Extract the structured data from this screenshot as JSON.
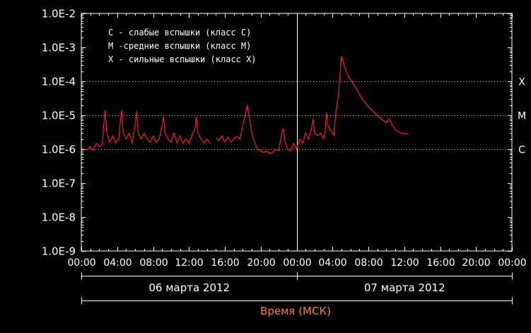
{
  "chart_data": {
    "type": "line",
    "yscale": "log",
    "ylim": [
      1e-09,
      0.01
    ],
    "y_tick_values": [
      1e-09,
      1e-08,
      1e-07,
      1e-06,
      1e-05,
      0.0001,
      0.001,
      0.01
    ],
    "y_tick_labels": [
      "1.0E-9",
      "1.0E-8",
      "1.0E-7",
      "1.0E-6",
      "1.0E-5",
      "1.0E-4",
      "1.0E-3",
      "1.0E-2"
    ],
    "xlim": [
      "2012-03-06 00:00",
      "2012-03-08 00:00"
    ],
    "x_tick_labels": [
      "00:00",
      "04:00",
      "08:00",
      "12:00",
      "16:00",
      "20:00",
      "00:00",
      "04:00",
      "08:00",
      "12:00",
      "16:00",
      "20:00",
      "00:00"
    ],
    "date_labels": [
      "06 марта 2012",
      "07 марта 2012"
    ],
    "xlabel": "Время (МСК)",
    "legend": [
      "С - слабые вспышки (класс С)",
      "М -средние вспышки (класс М)",
      "Х - сильные вспышки (класс Х)"
    ],
    "flare_classes": [
      {
        "label": "X",
        "value": 0.0001
      },
      {
        "label": "M",
        "value": 1e-05
      },
      {
        "label": "C",
        "value": 1e-06
      }
    ],
    "series": [
      {
        "color": "#ff1a1a",
        "segments": [
          [
            [
              "2012-03-06 00:00",
              1.1e-06
            ],
            [
              "2012-03-06 00:20",
              1e-06
            ],
            [
              "2012-03-06 00:40",
              9.5e-07
            ],
            [
              "2012-03-06 01:00",
              1.2e-06
            ],
            [
              "2012-03-06 01:20",
              9e-07
            ],
            [
              "2012-03-06 01:40",
              1.5e-06
            ],
            [
              "2012-03-06 02:00",
              1.2e-06
            ],
            [
              "2012-03-06 02:20",
              1.4e-06
            ],
            [
              "2012-03-06 02:30",
              5e-06
            ],
            [
              "2012-03-06 02:40",
              1.4e-05
            ],
            [
              "2012-03-06 02:50",
              3e-06
            ],
            [
              "2012-03-06 03:10",
              1.6e-06
            ],
            [
              "2012-03-06 03:30",
              2.5e-06
            ],
            [
              "2012-03-06 03:50",
              1.5e-06
            ],
            [
              "2012-03-06 04:10",
              2e-06
            ],
            [
              "2012-03-06 04:20",
              6e-06
            ],
            [
              "2012-03-06 04:30",
              1.4e-05
            ],
            [
              "2012-03-06 04:40",
              3e-06
            ],
            [
              "2012-03-06 05:00",
              2e-06
            ],
            [
              "2012-03-06 05:20",
              3e-06
            ],
            [
              "2012-03-06 05:40",
              1.5e-06
            ],
            [
              "2012-03-06 06:00",
              5e-06
            ],
            [
              "2012-03-06 06:10",
              1.3e-05
            ],
            [
              "2012-03-06 06:20",
              3e-06
            ],
            [
              "2012-03-06 06:40",
              2e-06
            ],
            [
              "2012-03-06 07:00",
              3e-06
            ],
            [
              "2012-03-06 07:20",
              2e-06
            ],
            [
              "2012-03-06 07:40",
              1.6e-06
            ],
            [
              "2012-03-06 08:00",
              2.5e-06
            ],
            [
              "2012-03-06 08:20",
              1.6e-06
            ],
            [
              "2012-03-06 08:40",
              2e-06
            ],
            [
              "2012-03-06 09:00",
              5e-06
            ],
            [
              "2012-03-06 09:10",
              9e-06
            ],
            [
              "2012-03-06 09:20",
              3e-06
            ],
            [
              "2012-03-06 09:40",
              2e-06
            ],
            [
              "2012-03-06 10:00",
              1.6e-06
            ],
            [
              "2012-03-06 10:20",
              3e-06
            ],
            [
              "2012-03-06 10:40",
              1.5e-06
            ],
            [
              "2012-03-06 11:00",
              2.5e-06
            ],
            [
              "2012-03-06 11:20",
              1.5e-06
            ],
            [
              "2012-03-06 11:40",
              2e-06
            ],
            [
              "2012-03-06 12:00",
              1.5e-06
            ],
            [
              "2012-03-06 12:20",
              2.5e-06
            ],
            [
              "2012-03-06 12:40",
              4e-06
            ],
            [
              "2012-03-06 12:50",
              9e-06
            ],
            [
              "2012-03-06 13:00",
              3e-06
            ],
            [
              "2012-03-06 13:20",
              2e-06
            ],
            [
              "2012-03-06 13:40",
              1.5e-06
            ],
            [
              "2012-03-06 14:00",
              2e-06
            ],
            [
              "2012-03-06 14:20",
              1.5e-06
            ]
          ],
          [
            [
              "2012-03-06 15:00",
              2.2e-06
            ],
            [
              "2012-03-06 15:20",
              1.8e-06
            ],
            [
              "2012-03-06 15:40",
              2.5e-06
            ],
            [
              "2012-03-06 16:00",
              1.6e-06
            ],
            [
              "2012-03-06 16:20",
              2.3e-06
            ],
            [
              "2012-03-06 16:40",
              1.6e-06
            ],
            [
              "2012-03-06 17:00",
              2e-06
            ],
            [
              "2012-03-06 17:20",
              2.4e-06
            ],
            [
              "2012-03-06 17:40",
              2e-06
            ],
            [
              "2012-03-06 18:00",
              5e-06
            ],
            [
              "2012-03-06 18:20",
              1.2e-05
            ],
            [
              "2012-03-06 18:30",
              2e-05
            ],
            [
              "2012-03-06 18:45",
              8e-06
            ],
            [
              "2012-03-06 19:00",
              3e-06
            ],
            [
              "2012-03-06 19:20",
              1.5e-06
            ],
            [
              "2012-03-06 19:40",
              1e-06
            ],
            [
              "2012-03-06 20:00",
              9e-07
            ],
            [
              "2012-03-06 20:20",
              8e-07
            ],
            [
              "2012-03-06 20:40",
              9e-07
            ],
            [
              "2012-03-06 21:00",
              7.5e-07
            ],
            [
              "2012-03-06 21:20",
              8e-07
            ],
            [
              "2012-03-06 21:40",
              1e-06
            ],
            [
              "2012-03-06 22:00",
              9e-07
            ],
            [
              "2012-03-06 22:20",
              3e-06
            ],
            [
              "2012-03-06 22:30",
              4e-06
            ],
            [
              "2012-03-06 22:45",
              1.5e-06
            ],
            [
              "2012-03-06 23:00",
              1e-06
            ],
            [
              "2012-03-06 23:20",
              9e-07
            ],
            [
              "2012-03-06 23:40",
              1.5e-06
            ],
            [
              "2012-03-07 00:00",
              1e-06
            ],
            [
              "2012-03-07 00:20",
              2e-06
            ],
            [
              "2012-03-07 00:40",
              1.5e-06
            ],
            [
              "2012-03-07 01:00",
              3e-06
            ],
            [
              "2012-03-07 01:20",
              2e-06
            ],
            [
              "2012-03-07 01:40",
              4e-06
            ],
            [
              "2012-03-07 01:50",
              8e-06
            ],
            [
              "2012-03-07 02:00",
              3e-06
            ],
            [
              "2012-03-07 02:20",
              2.5e-06
            ],
            [
              "2012-03-07 02:40",
              3e-06
            ],
            [
              "2012-03-07 03:00",
              2e-06
            ],
            [
              "2012-03-07 03:10",
              3e-06
            ],
            [
              "2012-03-07 03:20",
              1.2e-05
            ],
            [
              "2012-03-07 03:30",
              5e-06
            ],
            [
              "2012-03-07 03:40",
              4e-06
            ],
            [
              "2012-03-07 04:00",
              3e-06
            ],
            [
              "2012-03-07 04:10",
              2.5e-06
            ],
            [
              "2012-03-07 04:20",
              1e-05
            ],
            [
              "2012-03-07 04:40",
              4e-05
            ],
            [
              "2012-03-07 05:00",
              0.00055
            ],
            [
              "2012-03-07 05:10",
              0.0004
            ],
            [
              "2012-03-07 05:30",
              0.0002
            ],
            [
              "2012-03-07 05:50",
              0.00013
            ],
            [
              "2012-03-07 06:10",
              0.0001
            ],
            [
              "2012-03-07 06:40",
              6e-05
            ],
            [
              "2012-03-07 07:10",
              3.5e-05
            ],
            [
              "2012-03-07 07:40",
              2.3e-05
            ],
            [
              "2012-03-07 08:10",
              1.6e-05
            ],
            [
              "2012-03-07 08:40",
              1.2e-05
            ],
            [
              "2012-03-07 09:10",
              9e-06
            ],
            [
              "2012-03-07 09:40",
              7e-06
            ],
            [
              "2012-03-07 10:00",
              6e-06
            ],
            [
              "2012-03-07 10:20",
              8e-06
            ],
            [
              "2012-03-07 10:40",
              5e-06
            ],
            [
              "2012-03-07 11:10",
              3.5e-06
            ],
            [
              "2012-03-07 11:40",
              3e-06
            ],
            [
              "2012-03-07 12:10",
              2.8e-06
            ],
            [
              "2012-03-07 12:30",
              2.8e-06
            ]
          ]
        ]
      }
    ]
  }
}
